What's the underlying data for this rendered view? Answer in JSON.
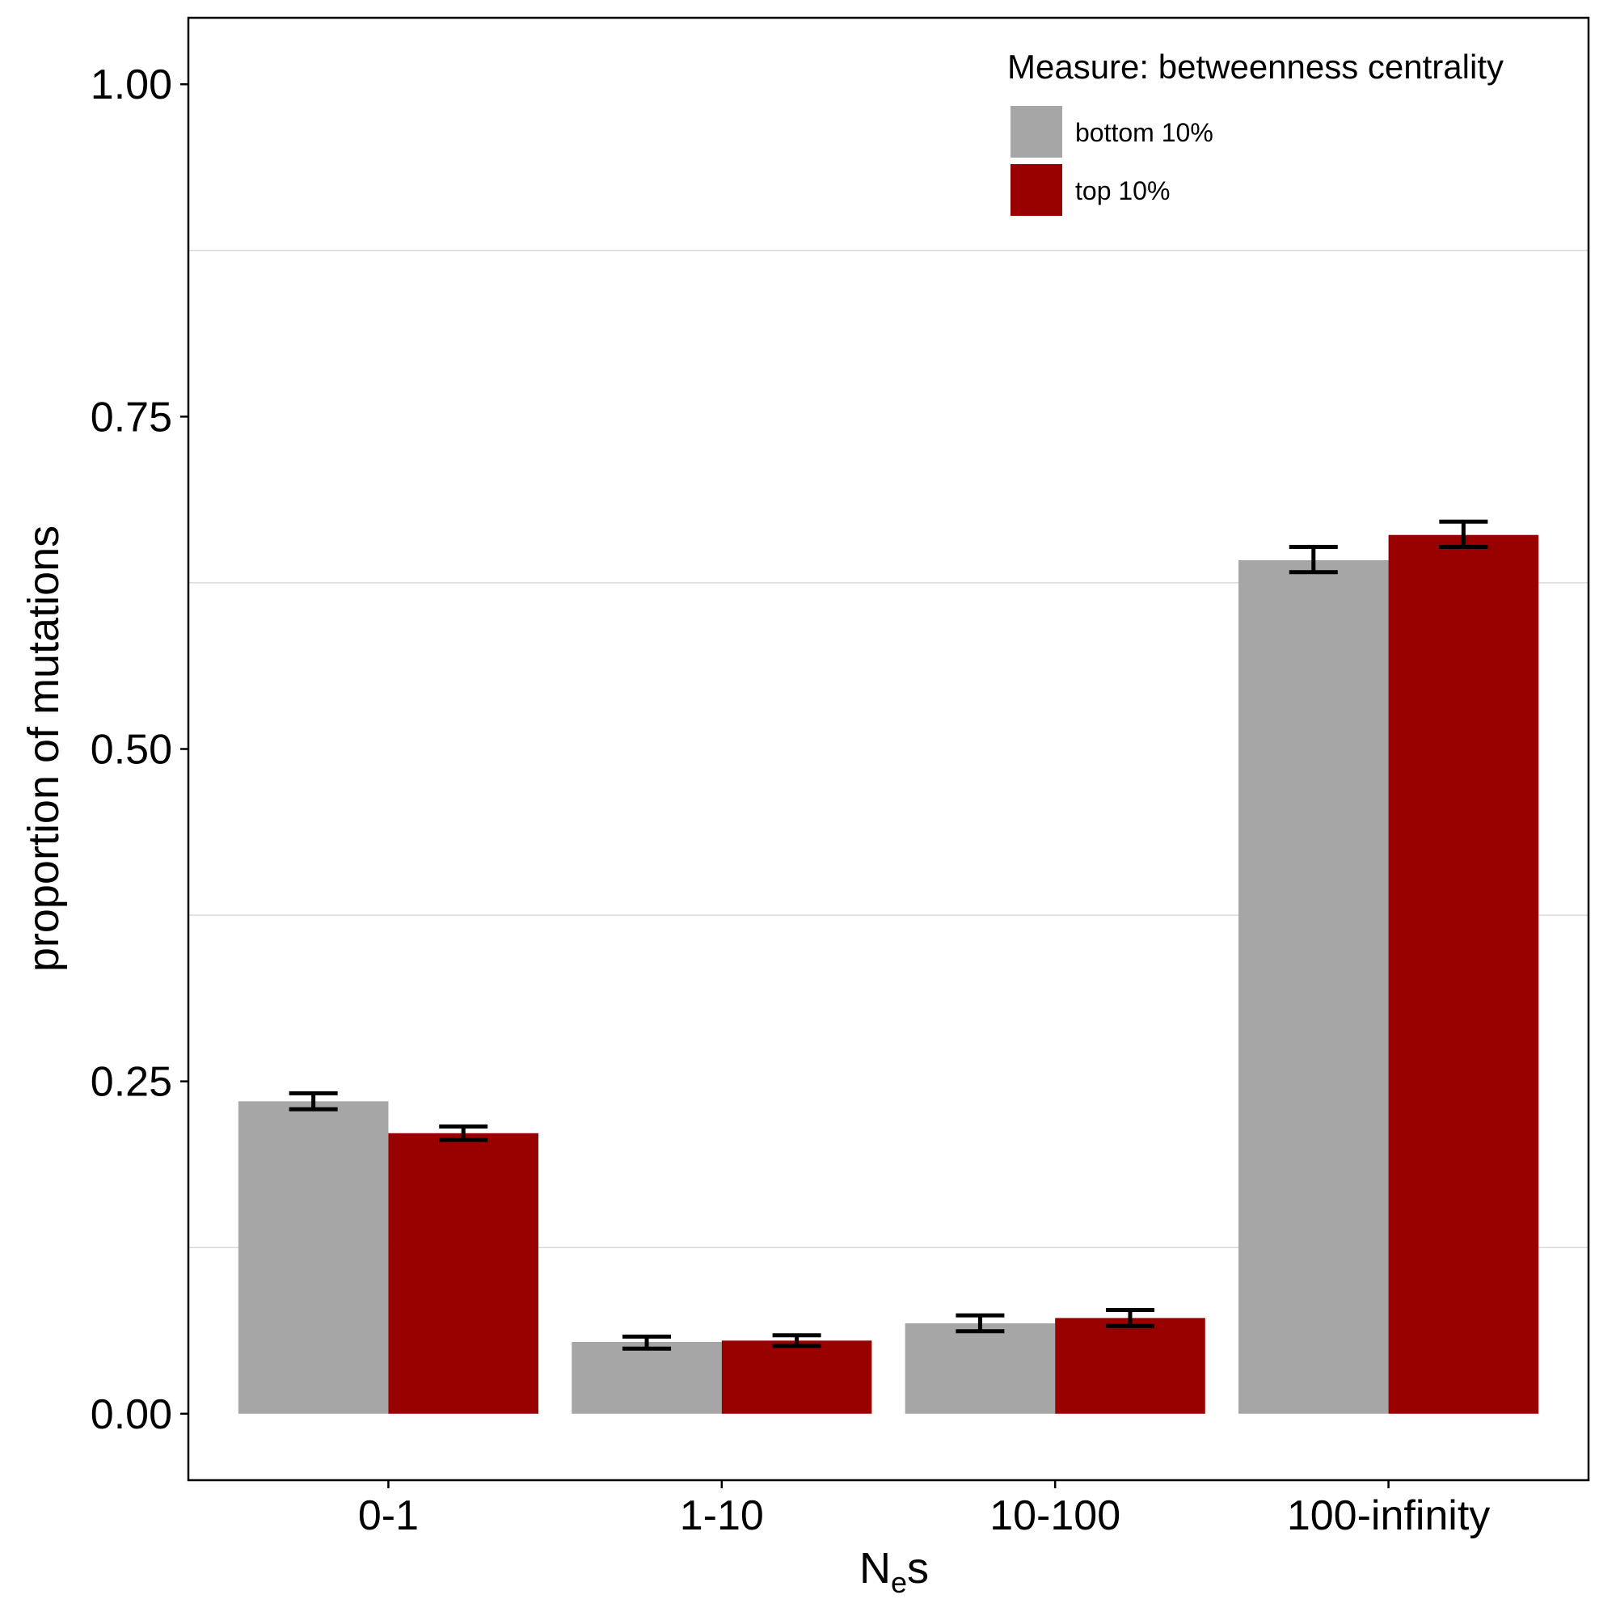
{
  "chart_data": {
    "type": "bar",
    "title": "",
    "xlabel": {
      "main": "N",
      "sub": "e",
      "rest": "s"
    },
    "ylabel": "proportion of mutations",
    "categories": [
      "0-1",
      "1-10",
      "10-100",
      "100-infinity"
    ],
    "ylim": [
      -0.05,
      1.05
    ],
    "yticks": [
      0.0,
      0.25,
      0.5,
      0.75,
      1.0
    ],
    "ytick_labels": [
      "0.00",
      "0.25",
      "0.50",
      "0.75",
      "1.00"
    ],
    "minor_gridlines": [
      0.125,
      0.375,
      0.625,
      0.875
    ],
    "grid": true,
    "legend": {
      "title": "Measure: betweenness centrality",
      "placement": "top-right"
    },
    "series": [
      {
        "name": "bottom 10%",
        "color": "#a6a6a6",
        "values": [
          0.235,
          0.054,
          0.068,
          0.642
        ],
        "error_low": [
          0.229,
          0.049,
          0.062,
          0.633
        ],
        "error_high": [
          0.241,
          0.058,
          0.074,
          0.652
        ]
      },
      {
        "name": "top 10%",
        "color": "#990000",
        "values": [
          0.211,
          0.055,
          0.072,
          0.661
        ],
        "error_low": [
          0.206,
          0.051,
          0.066,
          0.652
        ],
        "error_high": [
          0.216,
          0.059,
          0.078,
          0.671
        ]
      }
    ]
  }
}
